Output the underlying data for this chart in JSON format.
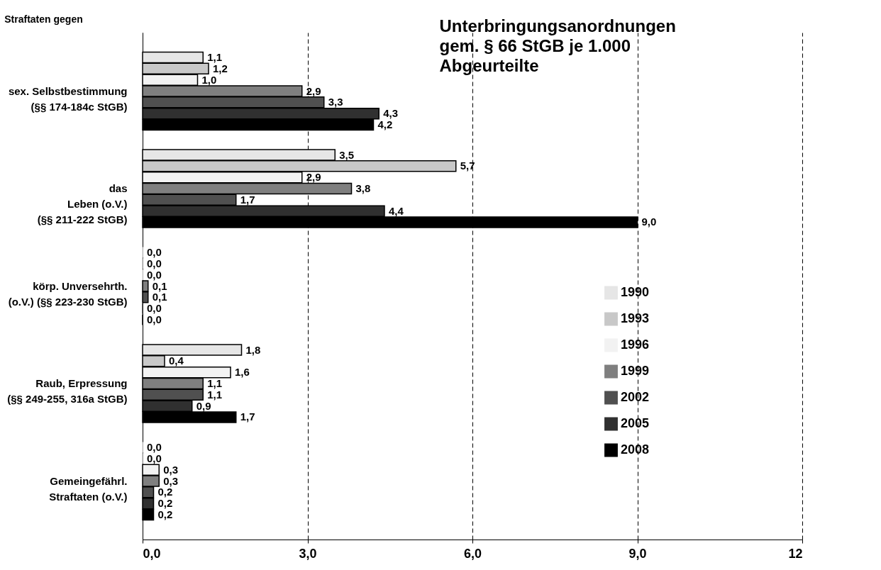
{
  "chart_data": {
    "type": "bar",
    "orientation": "horizontal",
    "title": "Unterbringungsanordnungen\ngem. § 66 StGB je 1.000\nAbgeurteilte",
    "ylabel": "Straftaten gegen",
    "categories": [
      "sex. Selbstbestimmung\n(§§ 174-184c StGB)",
      "das\nLeben (o.V.)\n(§§ 211-222 StGB)",
      "körp. Unversehrth.\n(o.V.) (§§ 223-230 StGB)",
      "Raub, Erpressung\n(§§ 249-255, 316a StGB)",
      "Gemeingefährl.\nStraftaten (o.V.)"
    ],
    "series": [
      {
        "name": "1990",
        "color": "#e6e6e6",
        "values": [
          1.1,
          3.5,
          0.0,
          1.8,
          0.0
        ],
        "value_labels": [
          "1,1",
          "3,5",
          "0,0",
          "1,8",
          "0,0"
        ]
      },
      {
        "name": "1993",
        "color": "#c8c8c8",
        "values": [
          1.2,
          5.7,
          0.0,
          0.4,
          0.0
        ],
        "value_labels": [
          "1,2",
          "5,7",
          "0,0",
          "0,4",
          "0,0"
        ]
      },
      {
        "name": "1996",
        "color": "#f2f2f2",
        "values": [
          1.0,
          2.9,
          0.0,
          1.6,
          0.3
        ],
        "value_labels": [
          "1,0",
          "2,9",
          "0,0",
          "1,6",
          "0,3"
        ]
      },
      {
        "name": "1999",
        "color": "#7f7f7f",
        "values": [
          2.9,
          3.8,
          0.1,
          1.1,
          0.3
        ],
        "value_labels": [
          "2,9",
          "3,8",
          "0,1",
          "1,1",
          "0,3"
        ]
      },
      {
        "name": "2002",
        "color": "#505050",
        "values": [
          3.3,
          1.7,
          0.1,
          1.1,
          0.2
        ],
        "value_labels": [
          "3,3",
          "1,7",
          "0,1",
          "1,1",
          "0,2"
        ]
      },
      {
        "name": "2005",
        "color": "#303030",
        "values": [
          4.3,
          4.4,
          0.0,
          0.9,
          0.2
        ],
        "value_labels": [
          "4,3",
          "4,4",
          "0,0",
          "0,9",
          "0,2"
        ]
      },
      {
        "name": "2008",
        "color": "#000000",
        "values": [
          4.2,
          9.0,
          0.0,
          1.7,
          0.2
        ],
        "value_labels": [
          "4,2",
          "9,0",
          "0,0",
          "1,7",
          "0,2"
        ]
      }
    ],
    "xlim": [
      0,
      12
    ],
    "xticks": [
      {
        "value": 0,
        "label": "0,0"
      },
      {
        "value": 3,
        "label": "3,0"
      },
      {
        "value": 6,
        "label": "6,0"
      },
      {
        "value": 9,
        "label": "9,0"
      },
      12
    ],
    "grid": "x",
    "legend": "right"
  }
}
